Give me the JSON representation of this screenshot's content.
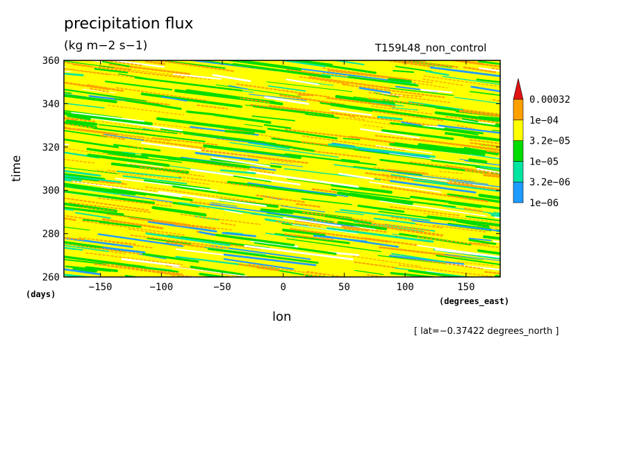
{
  "chart_data": {
    "type": "heatmap",
    "title": "precipitation flux",
    "units": "(kg m−2 s−1)",
    "run_label": "T159L48_non_control",
    "xlabel": "lon",
    "ylabel": "time",
    "x_unit": "(degrees_east)",
    "y_unit": "(days)",
    "xlim": [
      -180,
      178
    ],
    "ylim": [
      260,
      360
    ],
    "x_ticks": [
      -150,
      -100,
      -50,
      0,
      50,
      100,
      150
    ],
    "x_tick_labels": [
      "−150",
      "−100",
      "−50",
      "0",
      "50",
      "100",
      "150"
    ],
    "y_ticks": [
      260,
      280,
      300,
      320,
      340,
      360
    ],
    "y_tick_labels": [
      "260",
      "280",
      "300",
      "320",
      "340",
      "360"
    ],
    "annotation": "[ lat=−0.37422 degrees_north ]",
    "colorbar": {
      "levels": [
        1e-06,
        3.2e-06,
        1e-05,
        3.2e-05,
        0.0001,
        0.00032
      ],
      "labels": [
        "1e−06",
        "3.2e−06",
        "1e−05",
        "3.2e−05",
        "1e−04",
        "0.00032"
      ],
      "colors": [
        "#1e9bff",
        "#00e5a0",
        "#00dc00",
        "#ffff00",
        "#ffa000",
        "#e01414"
      ],
      "extend": "max"
    },
    "pattern_note": "Hovmoller diagram: westward-propagating precipitation streaks filling the domain"
  }
}
